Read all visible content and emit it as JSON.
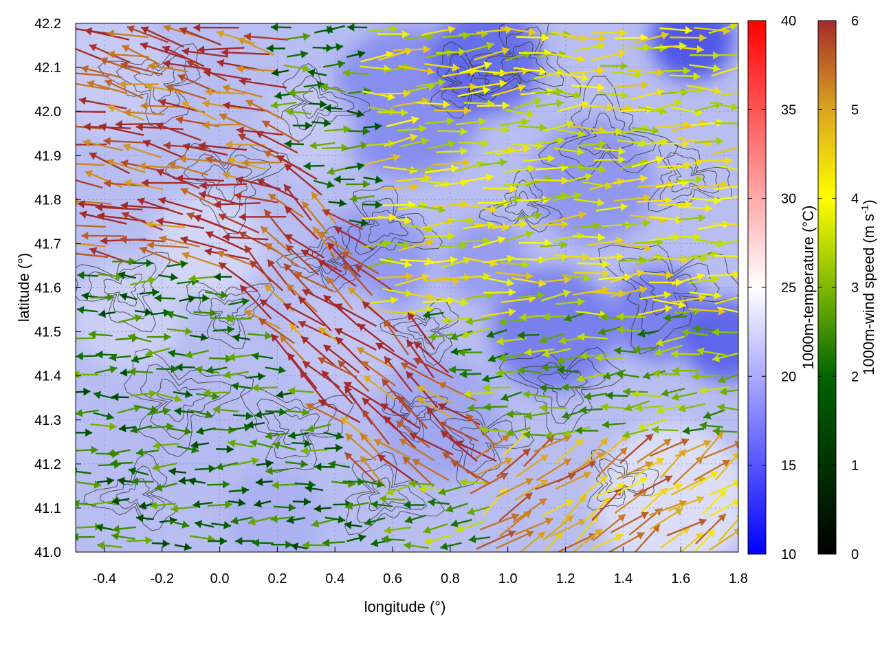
{
  "chart_data": {
    "type": "vector-field",
    "xlabel": "longitude (°)",
    "ylabel": "latitude (°)",
    "xlim": [
      -0.5,
      1.8
    ],
    "ylim": [
      41.0,
      42.2
    ],
    "xticks": [
      "-0.4",
      "-0.2",
      "0.0",
      "0.2",
      "0.4",
      "0.6",
      "0.8",
      "1.0",
      "1.2",
      "1.4",
      "1.6",
      "1.8"
    ],
    "yticks": [
      "41.0",
      "41.1",
      "41.2",
      "41.3",
      "41.4",
      "41.5",
      "41.6",
      "41.7",
      "41.8",
      "41.9",
      "42.0",
      "42.1",
      "42.2"
    ],
    "grid": true,
    "background_field": {
      "name": "1000m-temperature",
      "colorbar_label": "1000m-temperature (°C)",
      "range": [
        10,
        40
      ],
      "ticks": [
        "10",
        "15",
        "20",
        "25",
        "30",
        "35",
        "40"
      ],
      "colormap": [
        "#0000ff",
        "#ffffff",
        "#ff0000"
      ],
      "approx_range_shown": [
        15,
        22
      ]
    },
    "vector_field": {
      "name": "1000m-wind speed",
      "colorbar_label": "1000m-wind speed (m s-1)",
      "range": [
        0,
        6
      ],
      "ticks": [
        "0",
        "1",
        "2",
        "3",
        "4",
        "5",
        "6"
      ],
      "colormap": [
        "#000000",
        "#006400",
        "#7fb800",
        "#ffff00",
        "#daa520",
        "#a52a2a"
      ],
      "regions": [
        {
          "area": "north-west",
          "direction": "westward",
          "speed": 5.8
        },
        {
          "area": "central diagonal band",
          "direction": "north-westward",
          "speed": 5.7
        },
        {
          "area": "north-east",
          "direction": "eastward",
          "speed": 3.8
        },
        {
          "area": "east",
          "direction": "eastward",
          "speed": 4.2
        },
        {
          "area": "south-east",
          "direction": "north-eastward",
          "speed": 5.2
        },
        {
          "area": "south-west",
          "direction": "mixed east/west",
          "speed": 2.5
        },
        {
          "area": "center",
          "direction": "westward",
          "speed": 3.0
        }
      ]
    },
    "contours": {
      "color": "#333333",
      "description": "terrain elevation isolines"
    }
  }
}
